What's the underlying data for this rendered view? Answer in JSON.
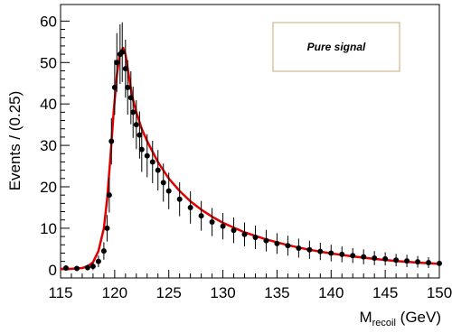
{
  "chart_data": {
    "type": "scatter",
    "title": "",
    "xlabel": "M",
    "xlabel_sub": "recoil",
    "xlabel_unit": " (GeV)",
    "ylabel": "Events / (0.25)",
    "xlim": [
      115,
      150
    ],
    "ylim": [
      -2,
      64
    ],
    "x_ticks": [
      115,
      120,
      125,
      130,
      135,
      140,
      145,
      150
    ],
    "y_ticks": [
      0,
      10,
      20,
      30,
      40,
      50,
      60
    ],
    "legend": {
      "label": "Pure signal",
      "placement": "top-right"
    },
    "colors": {
      "fit": "#e00000",
      "points": "#000000",
      "legend_border": "#c8a87a"
    },
    "series": [
      {
        "kind": "points",
        "x": [
          115.5,
          116.5,
          117.5,
          118.0,
          118.5,
          119.0,
          119.3,
          119.5,
          119.7,
          120.0,
          120.2,
          120.5,
          120.7,
          121.0,
          121.2,
          121.5,
          121.7,
          122.0,
          122.3,
          122.5,
          123.0,
          123.5,
          124.0,
          124.5,
          125.0,
          126.0,
          127.0,
          128.0,
          129.0,
          130.0,
          131.0,
          132.0,
          133.0,
          134.0,
          135.0,
          136.0,
          137.0,
          138.0,
          139.0,
          140.0,
          141.0,
          142.0,
          143.0,
          144.0,
          145.0,
          146.0,
          147.0,
          148.0,
          149.0,
          150.0
        ],
        "y": [
          0.4,
          0.3,
          0.5,
          0.8,
          2.0,
          4.5,
          10.0,
          18.0,
          31.0,
          44.0,
          50.0,
          52.0,
          52.5,
          48.5,
          44.0,
          41.5,
          38.0,
          35.0,
          32.5,
          29.0,
          27.5,
          26.0,
          24.0,
          21.0,
          19.0,
          17.0,
          15.0,
          13.0,
          11.5,
          10.5,
          9.5,
          8.5,
          7.8,
          7.0,
          6.3,
          5.8,
          5.2,
          4.8,
          4.4,
          4.0,
          3.7,
          3.4,
          3.1,
          2.8,
          2.6,
          2.3,
          2.1,
          1.9,
          1.7,
          1.5
        ],
        "err": [
          0.6,
          0.6,
          0.7,
          0.9,
          1.4,
          2.1,
          3.2,
          4.2,
          5.6,
          6.6,
          7.1,
          7.2,
          7.2,
          7.0,
          6.6,
          6.4,
          6.2,
          5.9,
          5.7,
          5.4,
          5.2,
          5.1,
          4.9,
          4.6,
          4.4,
          4.1,
          3.9,
          3.6,
          3.4,
          3.2,
          3.1,
          2.9,
          2.8,
          2.6,
          2.5,
          2.4,
          2.3,
          2.2,
          2.1,
          2.0,
          1.9,
          1.8,
          1.8,
          1.7,
          1.6,
          1.5,
          1.5,
          1.4,
          1.3,
          1.2
        ]
      },
      {
        "kind": "fit",
        "x": [
          115,
          116,
          117,
          117.5,
          118,
          118.5,
          119,
          119.3,
          119.6,
          119.9,
          120.2,
          120.5,
          120.8,
          121.0,
          121.3,
          121.6,
          122.0,
          122.5,
          123,
          124,
          125,
          126,
          127,
          128,
          129,
          130,
          132,
          134,
          136,
          138,
          140,
          142,
          144,
          146,
          148,
          150
        ],
        "y": [
          0.2,
          0.2,
          0.4,
          0.8,
          1.8,
          4.5,
          10,
          17,
          27,
          38,
          47,
          52.5,
          53.5,
          52,
          47,
          42,
          38,
          34,
          31,
          26,
          22,
          19,
          16.5,
          14.5,
          12.8,
          11.3,
          9.0,
          7.3,
          5.9,
          4.8,
          3.9,
          3.2,
          2.6,
          2.1,
          1.7,
          1.4
        ]
      }
    ]
  }
}
